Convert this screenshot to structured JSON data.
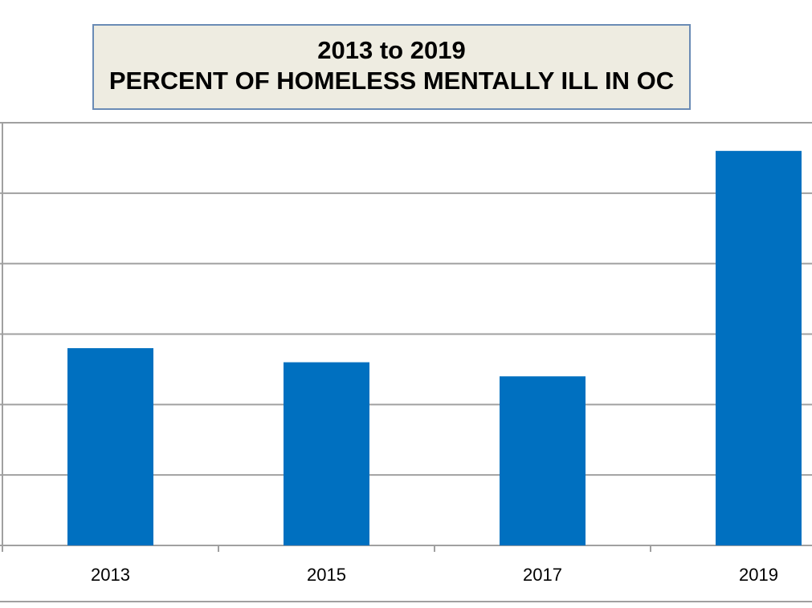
{
  "chart_data": {
    "type": "bar",
    "title": [
      "2013 to 2019",
      "PERCENT OF HOMELESS MENTALLY ILL IN OC"
    ],
    "categories": [
      "2013",
      "2015",
      "2017",
      "2019"
    ],
    "values": [
      14,
      13,
      12,
      28
    ],
    "xlabel": "",
    "ylabel": "",
    "ylim": [
      0,
      30
    ],
    "ytick_step": 5,
    "grid": true,
    "legend": "none",
    "colors": {
      "bar": "#0070c0",
      "grid": "#a0a0a0",
      "title_bg": "#eeece1",
      "title_border": "#6a8bb5"
    }
  }
}
